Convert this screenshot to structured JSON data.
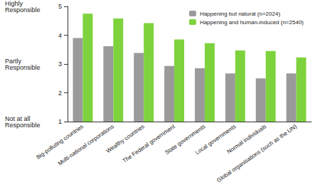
{
  "chart_data": {
    "type": "bar",
    "categories": [
      "Big-polluting countries",
      "Multi-national corporations",
      "Wealthy countries",
      "The Federal government",
      "State governments",
      "Local governments",
      "Normal individuals",
      "Global organisations (such as the UN)"
    ],
    "series": [
      {
        "name": "Happening but natural (n=2024)",
        "color": "#9a9a9a",
        "values": [
          3.9,
          3.62,
          3.38,
          2.93,
          2.85,
          2.67,
          2.5,
          2.67
        ]
      },
      {
        "name": "Happening and human-induced (n=2540)",
        "color": "#7ed23c",
        "values": [
          4.75,
          4.58,
          4.42,
          3.85,
          3.72,
          3.47,
          3.45,
          3.23
        ]
      }
    ],
    "ylim": [
      1,
      5
    ],
    "yticks": [
      1,
      2,
      3,
      4,
      5
    ],
    "annotations": [
      {
        "y": 5,
        "text": "Highly Responsible"
      },
      {
        "y": 3,
        "text": "Partly Responsible"
      },
      {
        "y": 1,
        "text": "Not at all Responsible"
      }
    ],
    "grid": false,
    "legend": "top-right"
  }
}
